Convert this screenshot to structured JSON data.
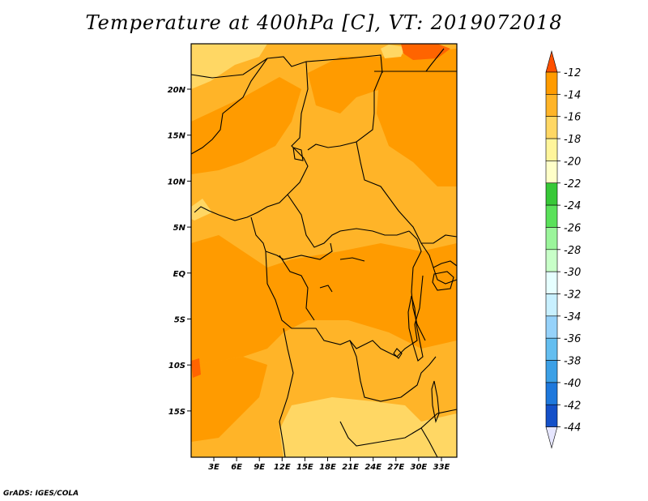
{
  "title": "Temperature at 400hPa [C], VT: 2019072018",
  "credit": "GrADS: IGES/COLA",
  "map": {
    "lon_ticks": [
      "3E",
      "6E",
      "9E",
      "12E",
      "15E",
      "18E",
      "21E",
      "24E",
      "27E",
      "30E",
      "33E"
    ],
    "lat_ticks": [
      "20N",
      "15N",
      "10N",
      "5N",
      "EQ",
      "5S",
      "10S",
      "15S"
    ]
  },
  "colorbar": {
    "labels": [
      "-12",
      "-14",
      "-16",
      "-18",
      "-20",
      "-22",
      "-24",
      "-26",
      "-28",
      "-30",
      "-32",
      "-34",
      "-36",
      "-38",
      "-40",
      "-42",
      "-44"
    ],
    "colors": [
      "#ff6400",
      "#ff9b00",
      "#ffb428",
      "#ffd764",
      "#fff59b",
      "#ffffc8",
      "#37c837",
      "#5ae15a",
      "#9bf59b",
      "#c8ffc8",
      "#e6ffff",
      "#c8f0ff",
      "#96d2fa",
      "#64bef0",
      "#3ca0e6",
      "#1e78dc",
      "#1450c8",
      "#0a1e78"
    ],
    "top_color": "#ff5000",
    "bottom_color": "#e6e6ff"
  },
  "field_colors": {
    "c_m14": "#ff9b00",
    "c_m16": "#ffb428",
    "c_m18": "#ffd764",
    "c_m12": "#ff6400"
  }
}
